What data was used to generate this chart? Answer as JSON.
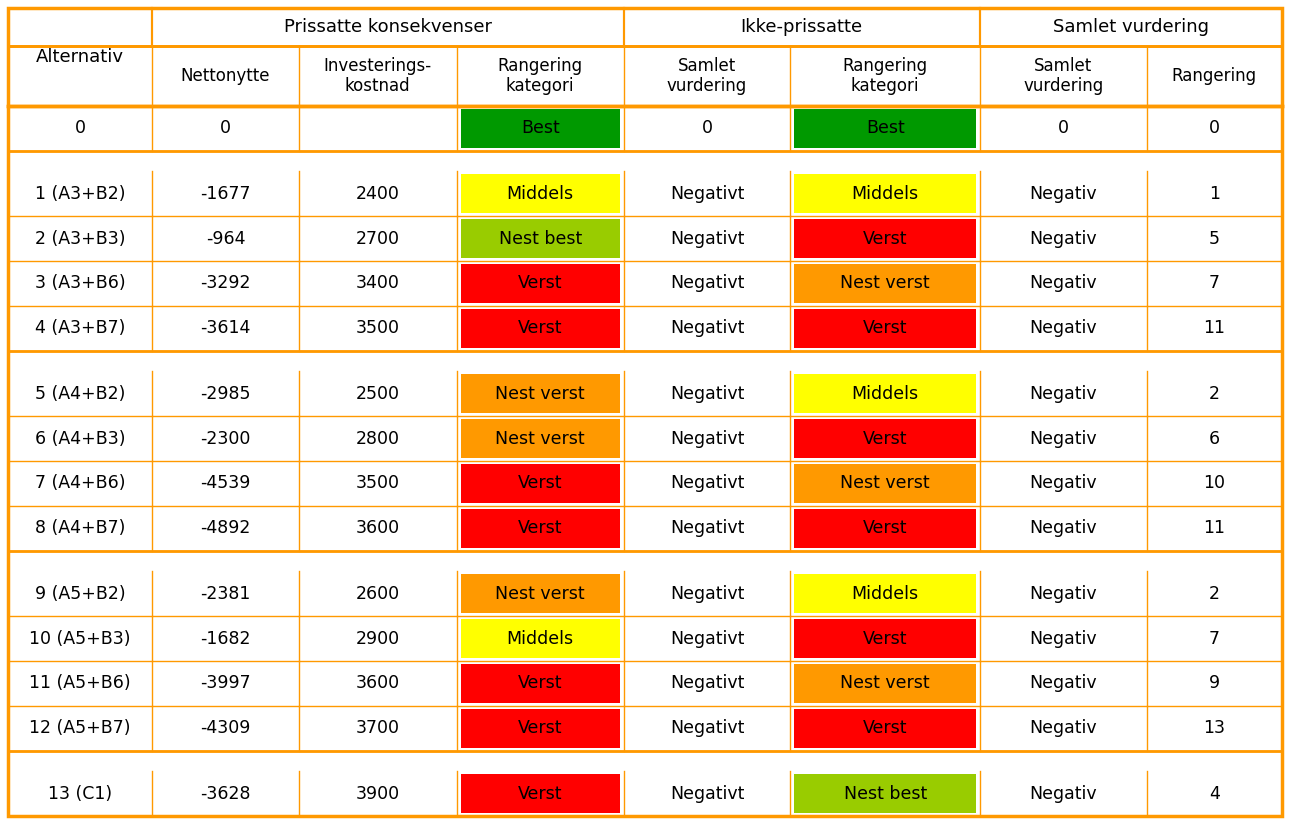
{
  "rows": [
    {
      "alt": "0",
      "nettonytte": "0",
      "invest": "",
      "rang_kat": "Best",
      "rang_kat_color": "#009900",
      "samlet_vurd": "0",
      "rang_kat2": "Best",
      "rang_kat2_color": "#009900",
      "samlet_vurd2": "0",
      "rangering": "0"
    },
    null,
    {
      "alt": "1 (A3+B2)",
      "nettonytte": "-1677",
      "invest": "2400",
      "rang_kat": "Middels",
      "rang_kat_color": "#FFFF00",
      "samlet_vurd": "Negativt",
      "rang_kat2": "Middels",
      "rang_kat2_color": "#FFFF00",
      "samlet_vurd2": "Negativ",
      "rangering": "1"
    },
    {
      "alt": "2 (A3+B3)",
      "nettonytte": "-964",
      "invest": "2700",
      "rang_kat": "Nest best",
      "rang_kat_color": "#99CC00",
      "samlet_vurd": "Negativt",
      "rang_kat2": "Verst",
      "rang_kat2_color": "#FF0000",
      "samlet_vurd2": "Negativ",
      "rangering": "5"
    },
    {
      "alt": "3 (A3+B6)",
      "nettonytte": "-3292",
      "invest": "3400",
      "rang_kat": "Verst",
      "rang_kat_color": "#FF0000",
      "samlet_vurd": "Negativt",
      "rang_kat2": "Nest verst",
      "rang_kat2_color": "#FF9900",
      "samlet_vurd2": "Negativ",
      "rangering": "7"
    },
    {
      "alt": "4 (A3+B7)",
      "nettonytte": "-3614",
      "invest": "3500",
      "rang_kat": "Verst",
      "rang_kat_color": "#FF0000",
      "samlet_vurd": "Negativt",
      "rang_kat2": "Verst",
      "rang_kat2_color": "#FF0000",
      "samlet_vurd2": "Negativ",
      "rangering": "11"
    },
    null,
    {
      "alt": "5 (A4+B2)",
      "nettonytte": "-2985",
      "invest": "2500",
      "rang_kat": "Nest verst",
      "rang_kat_color": "#FF9900",
      "samlet_vurd": "Negativt",
      "rang_kat2": "Middels",
      "rang_kat2_color": "#FFFF00",
      "samlet_vurd2": "Negativ",
      "rangering": "2"
    },
    {
      "alt": "6 (A4+B3)",
      "nettonytte": "-2300",
      "invest": "2800",
      "rang_kat": "Nest verst",
      "rang_kat_color": "#FF9900",
      "samlet_vurd": "Negativt",
      "rang_kat2": "Verst",
      "rang_kat2_color": "#FF0000",
      "samlet_vurd2": "Negativ",
      "rangering": "6"
    },
    {
      "alt": "7 (A4+B6)",
      "nettonytte": "-4539",
      "invest": "3500",
      "rang_kat": "Verst",
      "rang_kat_color": "#FF0000",
      "samlet_vurd": "Negativt",
      "rang_kat2": "Nest verst",
      "rang_kat2_color": "#FF9900",
      "samlet_vurd2": "Negativ",
      "rangering": "10"
    },
    {
      "alt": "8 (A4+B7)",
      "nettonytte": "-4892",
      "invest": "3600",
      "rang_kat": "Verst",
      "rang_kat_color": "#FF0000",
      "samlet_vurd": "Negativt",
      "rang_kat2": "Verst",
      "rang_kat2_color": "#FF0000",
      "samlet_vurd2": "Negativ",
      "rangering": "11"
    },
    null,
    {
      "alt": "9 (A5+B2)",
      "nettonytte": "-2381",
      "invest": "2600",
      "rang_kat": "Nest verst",
      "rang_kat_color": "#FF9900",
      "samlet_vurd": "Negativt",
      "rang_kat2": "Middels",
      "rang_kat2_color": "#FFFF00",
      "samlet_vurd2": "Negativ",
      "rangering": "2"
    },
    {
      "alt": "10 (A5+B3)",
      "nettonytte": "-1682",
      "invest": "2900",
      "rang_kat": "Middels",
      "rang_kat_color": "#FFFF00",
      "samlet_vurd": "Negativt",
      "rang_kat2": "Verst",
      "rang_kat2_color": "#FF0000",
      "samlet_vurd2": "Negativ",
      "rangering": "7"
    },
    {
      "alt": "11 (A5+B6)",
      "nettonytte": "-3997",
      "invest": "3600",
      "rang_kat": "Verst",
      "rang_kat_color": "#FF0000",
      "samlet_vurd": "Negativt",
      "rang_kat2": "Nest verst",
      "rang_kat2_color": "#FF9900",
      "samlet_vurd2": "Negativ",
      "rangering": "9"
    },
    {
      "alt": "12 (A5+B7)",
      "nettonytte": "-4309",
      "invest": "3700",
      "rang_kat": "Verst",
      "rang_kat_color": "#FF0000",
      "samlet_vurd": "Negativt",
      "rang_kat2": "Verst",
      "rang_kat2_color": "#FF0000",
      "samlet_vurd2": "Negativ",
      "rangering": "13"
    },
    null,
    {
      "alt": "13 (C1)",
      "nettonytte": "-3628",
      "invest": "3900",
      "rang_kat": "Verst",
      "rang_kat_color": "#FF0000",
      "samlet_vurd": "Negativt",
      "rang_kat2": "Nest best",
      "rang_kat2_color": "#99CC00",
      "samlet_vurd2": "Negativ",
      "rangering": "4"
    }
  ],
  "border_color": "#FF9900",
  "fig_w": 12.9,
  "fig_h": 8.24,
  "dpi": 100
}
